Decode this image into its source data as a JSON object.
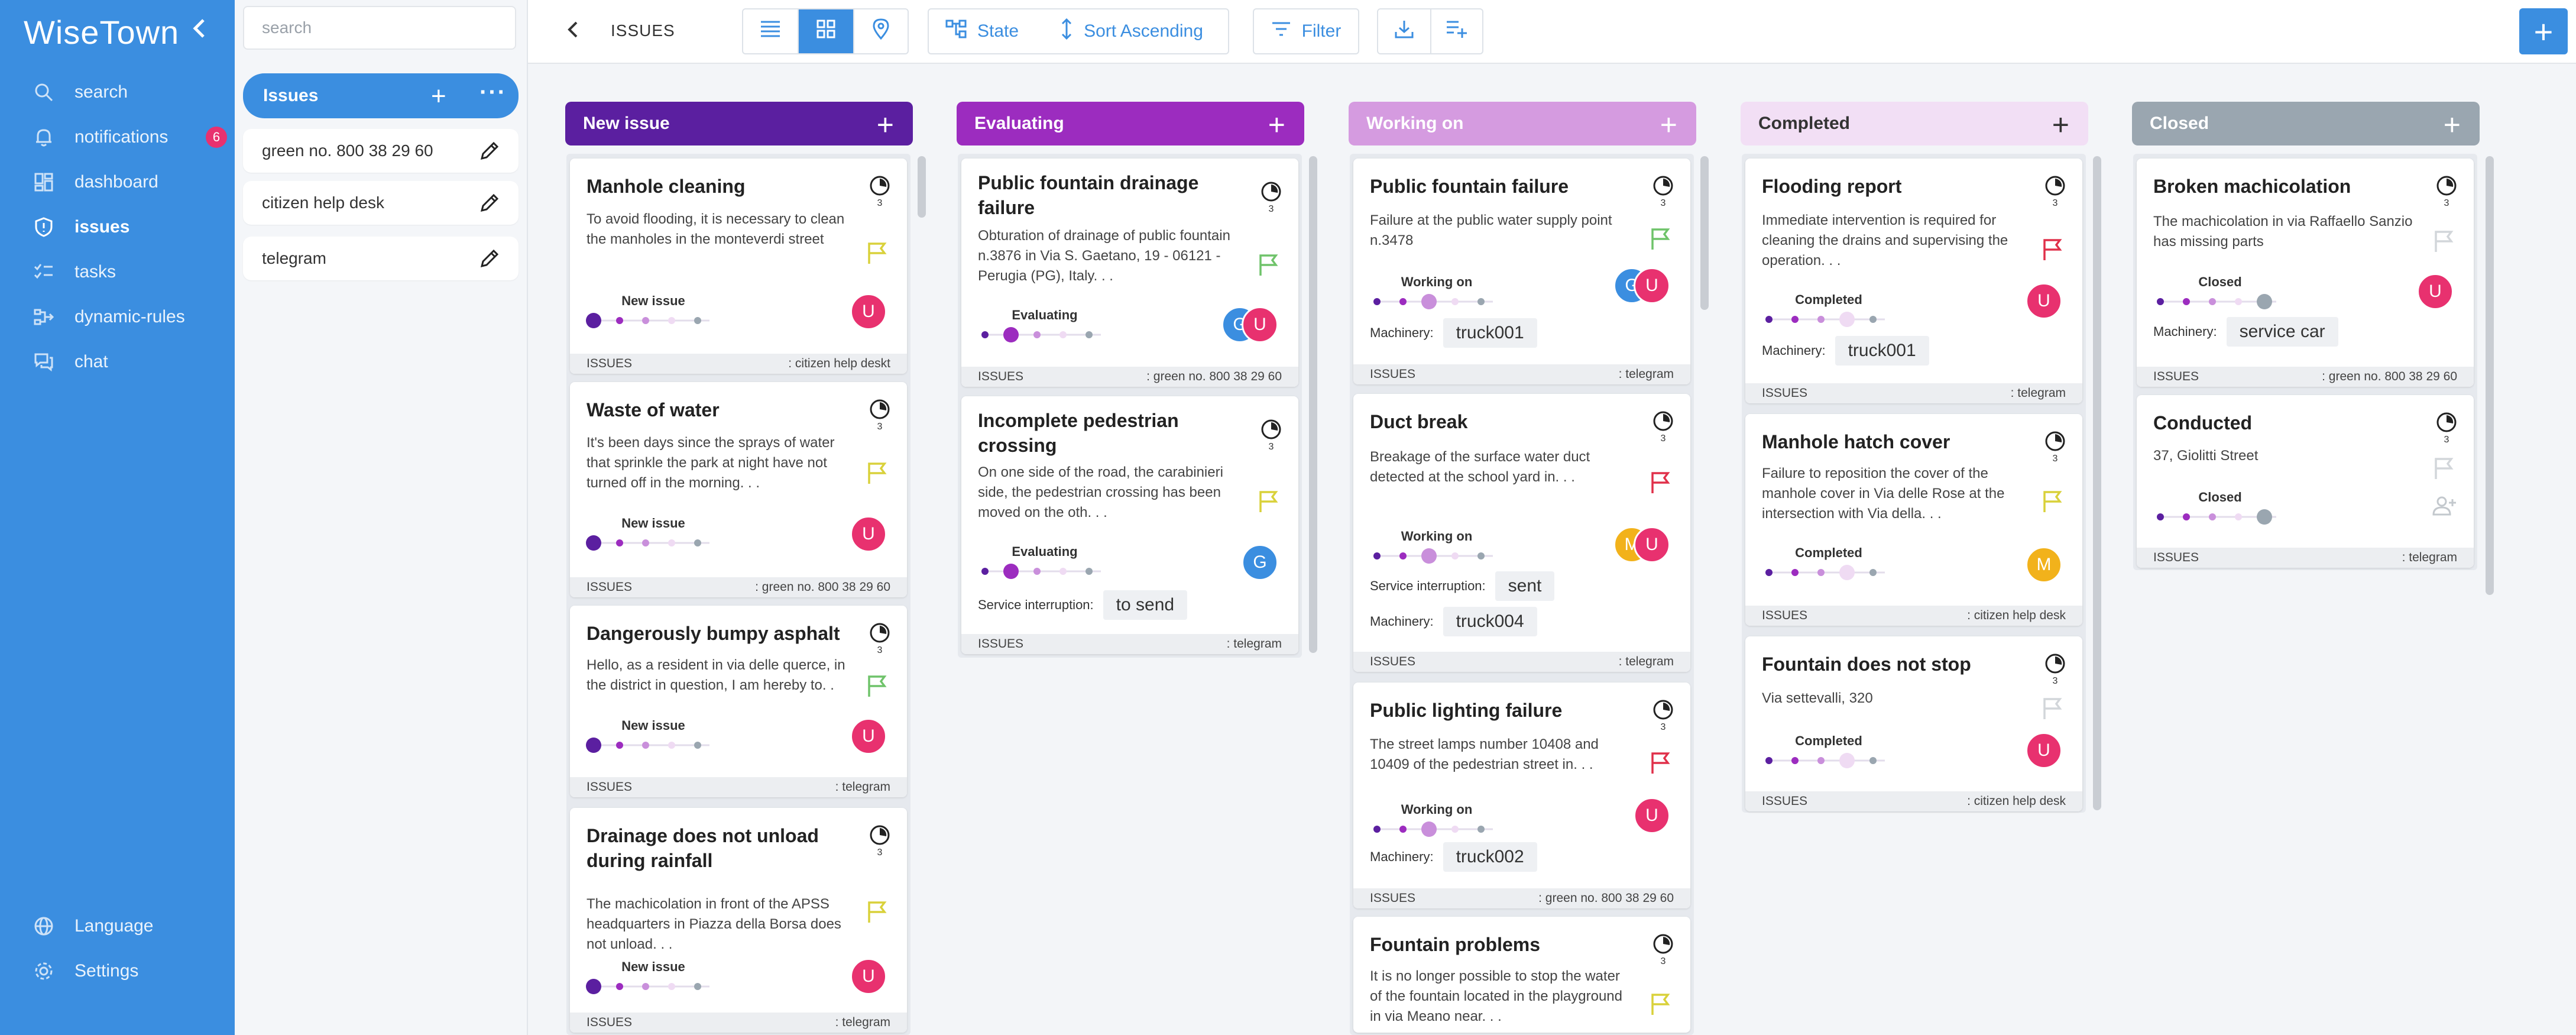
{
  "app": {
    "brand": "WiseTown"
  },
  "sidebar": {
    "items": [
      {
        "label": "search"
      },
      {
        "label": "notifications",
        "badge": "6"
      },
      {
        "label": "dashboard"
      },
      {
        "label": "issues"
      },
      {
        "label": "tasks"
      },
      {
        "label": "dynamic-rules"
      },
      {
        "label": "chat"
      }
    ],
    "bottom": [
      {
        "label": "Language"
      },
      {
        "label": "Settings"
      }
    ]
  },
  "panel": {
    "search_placeholder": "search",
    "active_board": "Issues",
    "boards": [
      {
        "label": "green no. 800 38 29 60"
      },
      {
        "label": "citizen help desk"
      },
      {
        "label": "telegram"
      }
    ]
  },
  "toolbar": {
    "breadcrumb": "ISSUES",
    "state_label": "State",
    "sort_label": "Sort Ascending",
    "filter_label": "Filter"
  },
  "columns": [
    {
      "title": "New issue",
      "color": "#5b1fa0"
    },
    {
      "title": "Evaluating",
      "color": "#9c2cbf"
    },
    {
      "title": "Working on",
      "color": "#d59be0"
    },
    {
      "title": "Completed",
      "color": "#f2dff5"
    },
    {
      "title": "Closed",
      "color": "#9aa6b0"
    }
  ],
  "cards": {
    "c0": [
      {
        "title": "Manhole cleaning",
        "desc": "To avoid flooding, it is necessary to clean the manholes in the monteverdi street",
        "status": "New issue",
        "user": "U",
        "flag": "yellow",
        "type": "ISSUES",
        "source": ": citizen help deskt",
        "count": "3"
      },
      {
        "title": "Waste of water",
        "desc": "It's been days since the sprays of water that sprinkle the park at night have not turned off in the morning. . .",
        "status": "New issue",
        "user": "U",
        "flag": "yellow",
        "type": "ISSUES",
        "source": ": green no. 800 38 29 60",
        "count": "3"
      },
      {
        "title": "Dangerously bumpy asphalt",
        "desc": "Hello, as a resident in via delle querce, in the district in question, I am hereby to. .",
        "status": "New issue",
        "user": "U",
        "flag": "green",
        "type": "ISSUES",
        "source": ": telegram",
        "count": "3"
      },
      {
        "title": "Drainage does not unload during rainfall",
        "desc": "The machicolation in front of the APSS headquarters in Piazza della Borsa does not unload. . .",
        "status": "New issue",
        "user": "U",
        "flag": "yellow",
        "type": "ISSUES",
        "source": ": telegram",
        "count": "3"
      }
    ],
    "c1": [
      {
        "title": "Public fountain drainage failure",
        "desc": "Obturation of drainage of public fountain n.3876 in Via S. Gaetano, 19 - 06121 - Perugia (PG), Italy. . .",
        "status": "Evaluating",
        "user": "U",
        "user2": "G",
        "flag": "green",
        "type": "ISSUES",
        "source": ": green no. 800 38 29 60",
        "count": "3"
      },
      {
        "title": "Incomplete pedestrian crossing",
        "desc": "On one side of the road, the carabinieri side, the pedestrian crossing has been moved on the oth. . .",
        "status": "Evaluating",
        "user": "G",
        "flag": "yellow",
        "field_label": "Service interruption:",
        "field_value": "to send",
        "type": "ISSUES",
        "source": ": telegram",
        "count": "3"
      }
    ],
    "c2": [
      {
        "title": "Public fountain failure",
        "desc": "Failure at the public water supply point n.3478",
        "status": "Working on",
        "user": "U",
        "user2": "G",
        "flag": "green",
        "field_label": "Machinery:",
        "field_value": "truck001",
        "type": "ISSUES",
        "source": ": telegram",
        "count": "3"
      },
      {
        "title": "Duct break",
        "desc": "Breakage of the surface water duct detected at the school yard in. . .",
        "status": "Working on",
        "user": "U",
        "user2": "M",
        "flag": "red",
        "field_label": "Service interruption:",
        "field_value": "sent",
        "field2_label": "Machinery:",
        "field2_value": "truck004",
        "type": "ISSUES",
        "source": ": telegram",
        "count": "3"
      },
      {
        "title": "Public lighting failure",
        "desc": "The street lamps number 10408 and 10409 of the pedestrian street in. . .",
        "status": "Working on",
        "user": "U",
        "flag": "red",
        "field_label": "Machinery:",
        "field_value": "truck002",
        "type": "ISSUES",
        "source": ": green no. 800 38 29 60",
        "count": "3"
      },
      {
        "title": "Fountain problems",
        "desc": "It is no longer possible to stop the water of the fountain located in the playground in via Meano near. . .",
        "status": "Working on",
        "user": "U",
        "flag": "yellow",
        "type": "ISSUES",
        "source": "",
        "count": "3"
      }
    ],
    "c3": [
      {
        "title": "Flooding report",
        "desc": "Immediate intervention is required for cleaning the drains and supervising the operation. . .",
        "status": "Completed",
        "user": "U",
        "flag": "red",
        "field_label": "Machinery:",
        "field_value": "truck001",
        "type": "ISSUES",
        "source": ": telegram",
        "count": "3"
      },
      {
        "title": "Manhole hatch cover",
        "desc": "Failure to reposition the cover of the manhole cover in Via delle Rose at the intersection with Via della. . .",
        "status": "Completed",
        "user": "M",
        "flag": "yellow",
        "type": "ISSUES",
        "source": ": citizen help desk",
        "count": "3"
      },
      {
        "title": "Fountain does not stop",
        "desc": "Via settevalli, 320",
        "status": "Completed",
        "user": "U",
        "flag": "grey",
        "type": "ISSUES",
        "source": ": citizen help desk",
        "count": "3"
      }
    ],
    "c4": [
      {
        "title": "Broken machicolation",
        "desc": "The machicolation in via Raffaello Sanzio has missing parts",
        "status": "Closed",
        "user": "U",
        "flag": "grey",
        "field_label": "Machinery:",
        "field_value": "service car",
        "type": "ISSUES",
        "source": ": green no. 800 38 29 60",
        "count": "3"
      },
      {
        "title": "Conducted",
        "desc": "37, Giolitti Street",
        "status": "Closed",
        "flag": "grey",
        "type": "ISSUES",
        "source": ": telegram",
        "count": "3"
      }
    ]
  },
  "colors": {
    "accent": "#3b8ee0",
    "user_pink": "#e8316f",
    "user_blue": "#3b8ee0",
    "user_yellow": "#f2b21b",
    "flag_yellow": "#d9d13a",
    "flag_green": "#6fc36a",
    "flag_red": "#e0304a",
    "flag_grey": "#d2d6da"
  }
}
